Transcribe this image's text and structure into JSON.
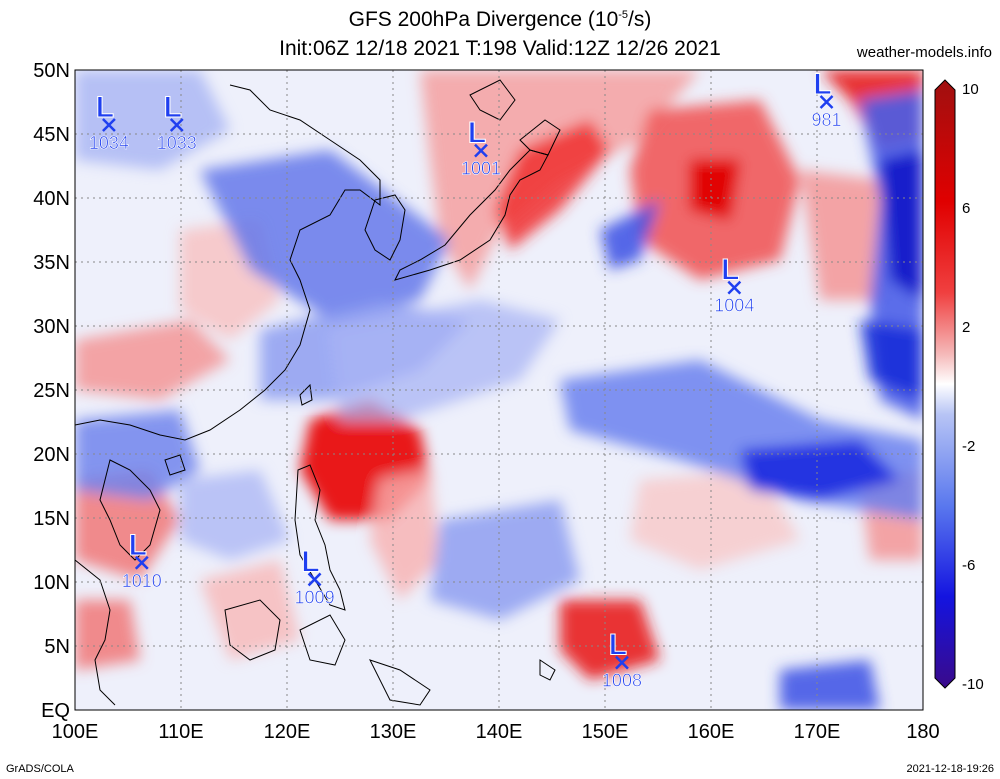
{
  "title": {
    "line1_prefix": "GFS 200hPa Divergence (10",
    "line1_exp": "-5",
    "line1_suffix": "/s)",
    "line2": "Init:06Z 12/18 2021 T:198 Valid:12Z 12/26 2021"
  },
  "credit": "weather-models.info",
  "footer": {
    "left": "GrADS/COLA",
    "right": "2021-12-18-19:26"
  },
  "axes": {
    "lat_labels": [
      "50N",
      "45N",
      "40N",
      "35N",
      "30N",
      "25N",
      "20N",
      "15N",
      "10N",
      "5N",
      "EQ"
    ],
    "lon_labels": [
      "100E",
      "110E",
      "120E",
      "130E",
      "140E",
      "150E",
      "160E",
      "170E",
      "180"
    ],
    "lat_range": [
      0,
      50
    ],
    "lon_range": [
      100,
      180
    ],
    "grid": true
  },
  "colorbar": {
    "labels": [
      "10",
      "6",
      "2",
      "-2",
      "-6",
      "-10"
    ],
    "range": [
      -10,
      10
    ],
    "colors": [
      "#3a0a8a",
      "#1414e0",
      "#5a78ee",
      "#b7c4f5",
      "#ffffff",
      "#f5b8b8",
      "#f04040",
      "#e00000",
      "#a01010"
    ]
  },
  "lows": [
    {
      "label": "L",
      "pressure": "1034",
      "lon": 103.2,
      "lat": 45.7
    },
    {
      "label": "L",
      "pressure": "1033",
      "lon": 109.6,
      "lat": 45.7
    },
    {
      "label": "L",
      "pressure": "1001",
      "lon": 138.3,
      "lat": 43.7
    },
    {
      "label": "L",
      "pressure": "981",
      "lon": 170.9,
      "lat": 47.5
    },
    {
      "label": "L",
      "pressure": "1004",
      "lon": 162.2,
      "lat": 33.0
    },
    {
      "label": "L",
      "pressure": "1010",
      "lon": 106.3,
      "lat": 11.5
    },
    {
      "label": "L",
      "pressure": "1009",
      "lon": 122.6,
      "lat": 10.2
    },
    {
      "label": "L",
      "pressure": "1008",
      "lon": 151.6,
      "lat": 3.7
    }
  ],
  "field_colors": {
    "strong_pos": "#e00000",
    "pos": "#f06060",
    "weak_pos": "#f8c8c8",
    "weak_neg": "#c8d0f5",
    "neg": "#5a78ee",
    "strong_neg": "#1a1ad8",
    "low_marker": "#1f3ff0"
  }
}
